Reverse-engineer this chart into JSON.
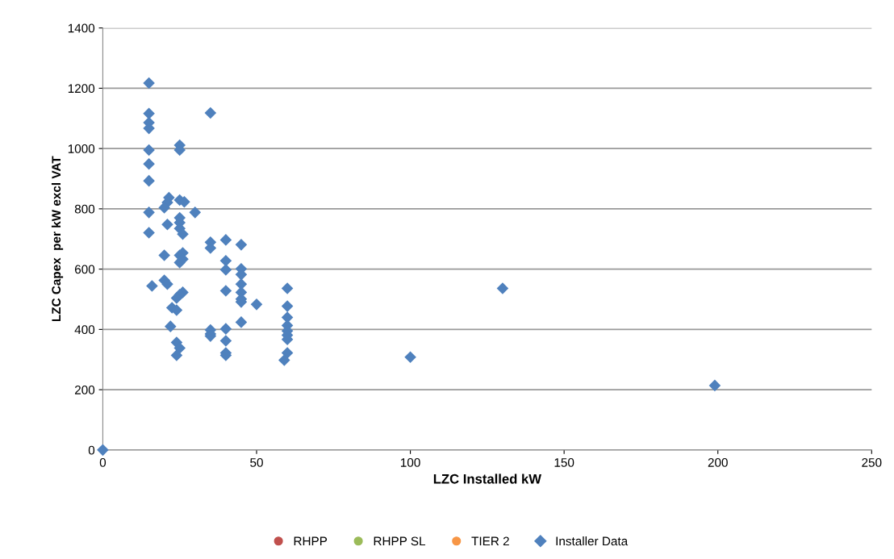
{
  "chart_data": {
    "type": "scatter",
    "xlabel": "LZC Installed kW",
    "ylabel": "LZC Capex  per kW excl VAT",
    "xlim": [
      0,
      250
    ],
    "xticks": [
      0,
      50,
      100,
      150,
      200,
      250
    ],
    "ylim": [
      0,
      1400
    ],
    "yticks": [
      0,
      200,
      400,
      600,
      800,
      1000,
      1200,
      1400
    ],
    "grid": "y",
    "legend": "bottom",
    "series": [
      {
        "name": "RHPP",
        "color": "#c0504d",
        "marker": "circle"
      },
      {
        "name": "RHPP SL",
        "color": "#9bbb59",
        "marker": "circle"
      },
      {
        "name": "TIER 2",
        "color": "#f79646",
        "marker": "circle"
      },
      {
        "name": "Installer Data",
        "color": "#4f81bd",
        "marker": "diamond",
        "x": [
          15,
          15,
          15,
          15,
          15,
          15,
          15,
          15,
          15,
          16,
          35,
          25,
          25,
          21.5,
          21,
          20,
          25,
          26.5,
          30,
          25,
          25,
          25,
          26,
          21,
          20,
          25,
          26,
          25,
          26,
          20,
          21,
          26,
          25,
          24,
          22.5,
          24,
          22,
          24,
          25,
          24,
          35,
          35,
          40,
          45,
          40,
          40,
          45,
          45,
          40,
          45,
          45,
          45,
          45,
          50,
          45,
          35,
          35,
          35,
          40,
          40,
          40,
          40,
          60,
          60,
          60,
          60,
          60,
          60,
          60,
          60,
          59,
          100,
          130,
          199,
          0
        ],
        "values": [
          1217,
          1116,
          1086,
          1067,
          995,
          949,
          893,
          788,
          721,
          544,
          1118,
          1011,
          995,
          837,
          821,
          804,
          829,
          823,
          788,
          770,
          754,
          735,
          716,
          748,
          646,
          646,
          654,
          622,
          633,
          563,
          550,
          523,
          515,
          504,
          472,
          464,
          410,
          357,
          338,
          314,
          689,
          670,
          697,
          681,
          628,
          598,
          601,
          582,
          528,
          550,
          523,
          501,
          491,
          483,
          424,
          398,
          385,
          378,
          402,
          362,
          322,
          314,
          536,
          477,
          440,
          413,
          395,
          381,
          367,
          322,
          298,
          308,
          536,
          214,
          0
        ]
      }
    ]
  }
}
